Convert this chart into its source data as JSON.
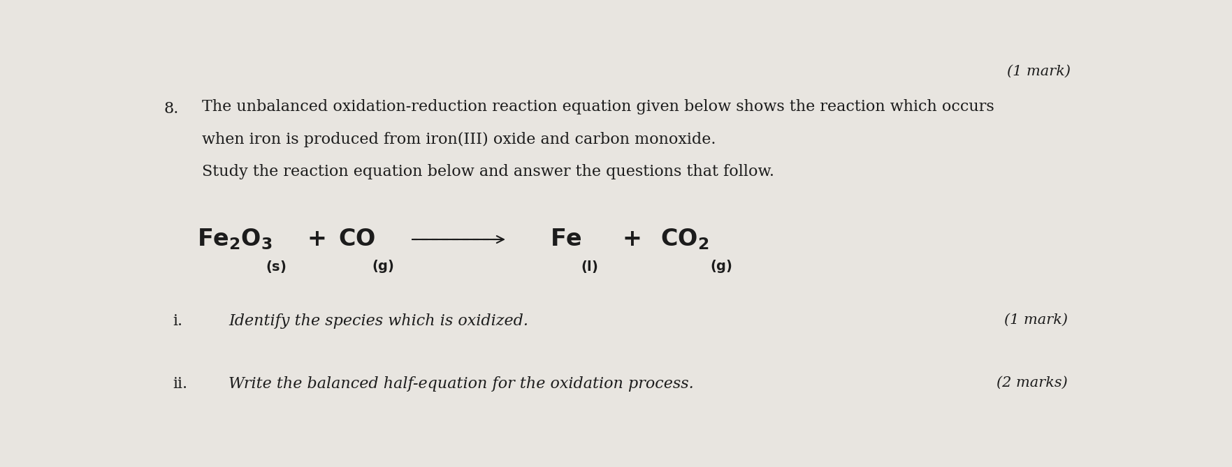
{
  "bg_color": "#e8e5e0",
  "text_color": "#1c1c1c",
  "fig_width": 17.63,
  "fig_height": 6.69,
  "top_right_mark": "(1 mark)",
  "question_number": "8.",
  "intro_line1": "The unbalanced oxidation-reduction reaction equation given below shows the reaction which occurs",
  "intro_line2": "when iron is produced from iron(III) oxide and carbon monoxide.",
  "intro_line3": "Study the reaction equation below and answer the questions that follow.",
  "sub_questions": [
    {
      "number": "i.",
      "text": "Identify the species which is oxidized.",
      "mark": "(1 mark)"
    },
    {
      "number": "ii.",
      "text": "Write the balanced half-equation for the oxidation process.",
      "mark": "(2 marks)"
    }
  ],
  "font_size_body": 16,
  "font_size_equation_main": 24,
  "font_size_equation_sub": 14,
  "font_size_marks": 15,
  "spine_color": "#c8c4bc"
}
